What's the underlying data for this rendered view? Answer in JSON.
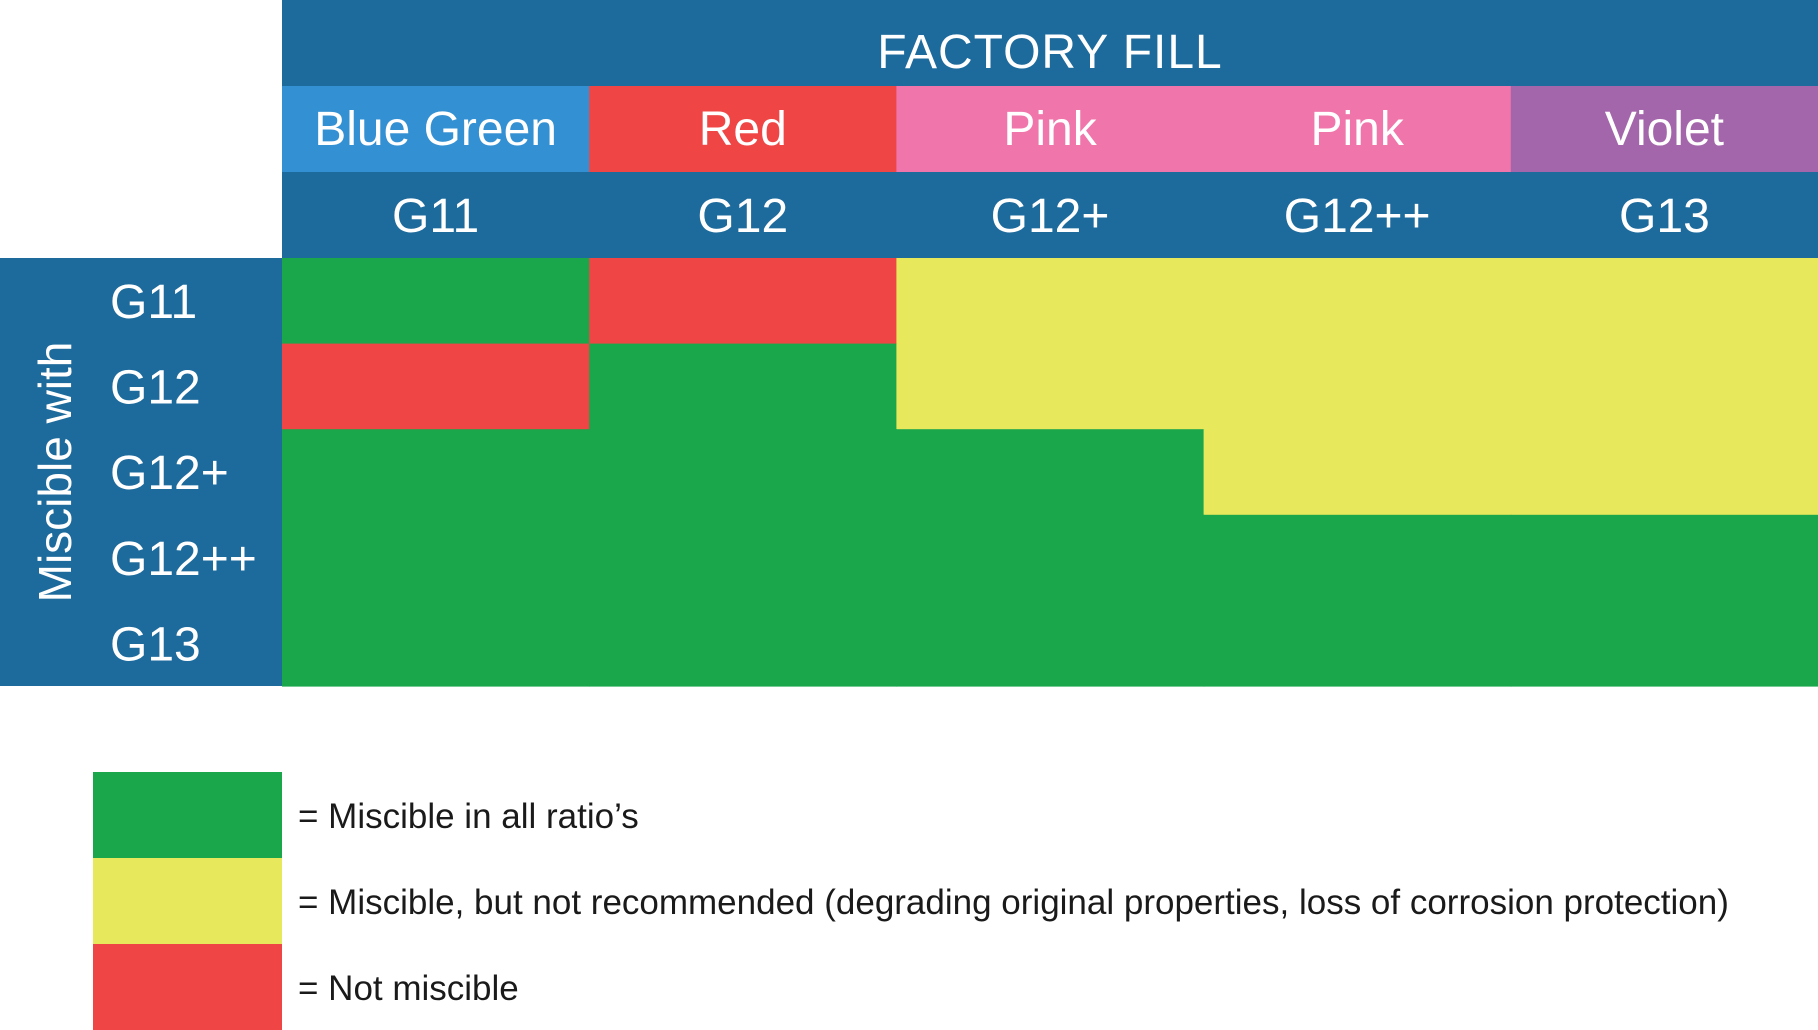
{
  "chart_data": {
    "type": "heatmap",
    "title": "FACTORY FILL",
    "row_axis_label": "Miscible with",
    "colors": {
      "header": "#1d6a9c",
      "green": "#1aa64b",
      "yellow": "#e8e85c",
      "red": "#f04545"
    },
    "columns": [
      {
        "color_name": "Blue Green",
        "color": "#3390d2",
        "grade": "G11"
      },
      {
        "color_name": "Red",
        "color": "#f04545",
        "grade": "G12"
      },
      {
        "color_name": "Pink",
        "color": "#f075ab",
        "grade": "G12+"
      },
      {
        "color_name": "Pink",
        "color": "#f075ab",
        "grade": "G12++"
      },
      {
        "color_name": "Violet",
        "color": "#a466ab",
        "grade": "G13"
      }
    ],
    "rows": [
      "G11",
      "G12",
      "G12+",
      "G12++",
      "G13"
    ],
    "matrix": [
      [
        "green",
        "red",
        "yellow",
        "yellow",
        "yellow"
      ],
      [
        "red",
        "green",
        "yellow",
        "yellow",
        "yellow"
      ],
      [
        "green",
        "green",
        "green",
        "yellow",
        "yellow"
      ],
      [
        "green",
        "green",
        "green",
        "green",
        "green"
      ],
      [
        "green",
        "green",
        "green",
        "green",
        "green"
      ]
    ],
    "legend": [
      {
        "key": "green",
        "label": "= Miscible in all ratio’s"
      },
      {
        "key": "yellow",
        "label": "= Miscible, but not recommended (degrading original properties, loss of corrosion protection)"
      },
      {
        "key": "red",
        "label": "= Not miscible"
      }
    ]
  }
}
